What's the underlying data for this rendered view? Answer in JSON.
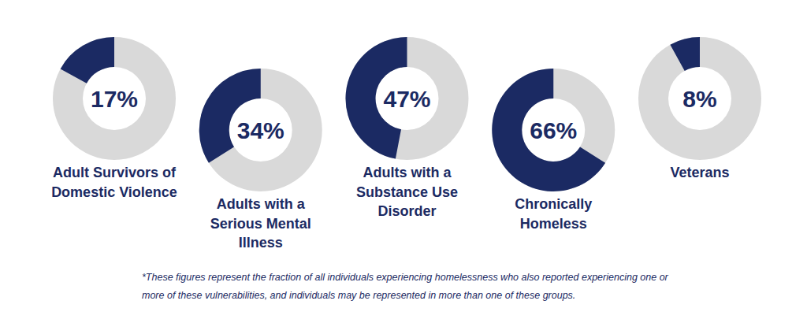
{
  "chart_data": {
    "type": "donut",
    "categories": [
      "Adult Survivors of\nDomestic Violence",
      "Adults with a\nSerious Mental\nIllness",
      "Adults with a\nSubstance Use\nDisorder",
      "Chronically\nHomeless",
      "Veterans"
    ],
    "values": [
      17,
      34,
      47,
      66,
      8
    ],
    "value_labels": [
      "17%",
      "34%",
      "47%",
      "66%",
      "8%"
    ],
    "data_labels": true,
    "color": "#1b2a63",
    "annotations": [
      "*These figures represent the fraction of all individuals experiencing homelessness who also reported experiencing one or more of these vulnerabilities, and individuals may be represented in more than one of these groups."
    ]
  }
}
